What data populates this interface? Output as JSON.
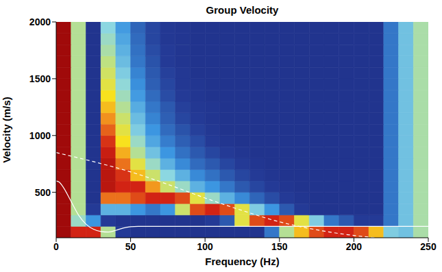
{
  "chart_data": {
    "type": "heatmap",
    "title": "Group Velocity",
    "x_label": "Frequency (Hz)",
    "y_label": "Velocity (m/s)",
    "xlim": [
      0,
      250
    ],
    "xticks": [
      0,
      50,
      100,
      150,
      200,
      250
    ],
    "ylim": [
      100,
      2000
    ],
    "yticks": [
      500,
      1000,
      1500,
      2000
    ],
    "x_bins": [
      0,
      10,
      20,
      30,
      40,
      50,
      60,
      70,
      80,
      90,
      100,
      110,
      120,
      130,
      140,
      150,
      160,
      170,
      180,
      190,
      200,
      210,
      220,
      230,
      240,
      250
    ],
    "y_bins": [
      100,
      200,
      300,
      400,
      500,
      600,
      700,
      800,
      900,
      1000,
      1100,
      1200,
      1300,
      1400,
      1500,
      1600,
      1700,
      1800,
      1900,
      2000
    ],
    "cells": [
      [
        1.0,
        0.9,
        0.9,
        0.5,
        0.15,
        0.12,
        0.12,
        0.12,
        0.12,
        0.12,
        0.12,
        0.12,
        0.12,
        0.12,
        0.25,
        0.5,
        0.7,
        0.85,
        0.9,
        0.9,
        0.85,
        0.7,
        0.4,
        0.38,
        0.48
      ],
      [
        1.0,
        0.45,
        0.3,
        0.15,
        0.12,
        0.12,
        0.12,
        0.12,
        0.12,
        0.12,
        0.15,
        0.2,
        0.6,
        0.85,
        0.9,
        0.85,
        0.6,
        0.4,
        0.25,
        0.2,
        0.15,
        0.15,
        0.25,
        0.38,
        0.48
      ],
      [
        1.0,
        0.5,
        0.15,
        0.35,
        0.35,
        0.3,
        0.25,
        0.3,
        0.55,
        0.85,
        0.9,
        0.85,
        0.6,
        0.4,
        0.3,
        0.2,
        0.15,
        0.12,
        0.12,
        0.12,
        0.12,
        0.12,
        0.25,
        0.38,
        0.48
      ],
      [
        1.0,
        0.5,
        0.12,
        0.8,
        0.8,
        0.85,
        0.9,
        0.9,
        0.85,
        0.6,
        0.45,
        0.35,
        0.28,
        0.22,
        0.18,
        0.15,
        0.13,
        0.12,
        0.12,
        0.12,
        0.12,
        0.12,
        0.25,
        0.38,
        0.48
      ],
      [
        1.0,
        0.5,
        0.12,
        0.95,
        0.9,
        0.9,
        0.75,
        0.55,
        0.45,
        0.35,
        0.3,
        0.25,
        0.2,
        0.17,
        0.15,
        0.13,
        0.12,
        0.12,
        0.12,
        0.12,
        0.12,
        0.12,
        0.25,
        0.38,
        0.48
      ],
      [
        1.0,
        0.5,
        0.12,
        0.95,
        0.88,
        0.7,
        0.55,
        0.42,
        0.35,
        0.28,
        0.24,
        0.2,
        0.17,
        0.15,
        0.13,
        0.12,
        0.12,
        0.12,
        0.12,
        0.12,
        0.12,
        0.12,
        0.25,
        0.38,
        0.48
      ],
      [
        1.0,
        0.5,
        0.12,
        0.95,
        0.8,
        0.6,
        0.45,
        0.35,
        0.28,
        0.23,
        0.2,
        0.17,
        0.15,
        0.13,
        0.12,
        0.12,
        0.12,
        0.12,
        0.12,
        0.12,
        0.12,
        0.12,
        0.25,
        0.38,
        0.48
      ],
      [
        1.0,
        0.5,
        0.12,
        0.92,
        0.72,
        0.5,
        0.38,
        0.3,
        0.24,
        0.2,
        0.17,
        0.15,
        0.13,
        0.12,
        0.12,
        0.12,
        0.12,
        0.12,
        0.12,
        0.12,
        0.12,
        0.12,
        0.25,
        0.38,
        0.48
      ],
      [
        1.0,
        0.5,
        0.12,
        0.88,
        0.65,
        0.45,
        0.33,
        0.26,
        0.21,
        0.18,
        0.15,
        0.13,
        0.12,
        0.12,
        0.12,
        0.12,
        0.12,
        0.12,
        0.12,
        0.12,
        0.12,
        0.12,
        0.25,
        0.38,
        0.48
      ],
      [
        1.0,
        0.5,
        0.12,
        0.82,
        0.6,
        0.4,
        0.3,
        0.23,
        0.19,
        0.16,
        0.14,
        0.12,
        0.12,
        0.12,
        0.12,
        0.12,
        0.12,
        0.12,
        0.12,
        0.12,
        0.12,
        0.12,
        0.25,
        0.38,
        0.48
      ],
      [
        1.0,
        0.5,
        0.12,
        0.76,
        0.55,
        0.37,
        0.27,
        0.21,
        0.17,
        0.15,
        0.13,
        0.12,
        0.12,
        0.12,
        0.12,
        0.12,
        0.12,
        0.12,
        0.12,
        0.12,
        0.12,
        0.12,
        0.25,
        0.38,
        0.48
      ],
      [
        1.0,
        0.5,
        0.12,
        0.7,
        0.5,
        0.34,
        0.25,
        0.2,
        0.16,
        0.14,
        0.13,
        0.12,
        0.12,
        0.12,
        0.12,
        0.12,
        0.12,
        0.12,
        0.12,
        0.12,
        0.12,
        0.12,
        0.25,
        0.38,
        0.48
      ],
      [
        1.0,
        0.5,
        0.12,
        0.65,
        0.46,
        0.31,
        0.23,
        0.18,
        0.15,
        0.13,
        0.12,
        0.12,
        0.12,
        0.12,
        0.12,
        0.12,
        0.12,
        0.12,
        0.12,
        0.12,
        0.12,
        0.12,
        0.25,
        0.38,
        0.48
      ],
      [
        1.0,
        0.5,
        0.12,
        0.6,
        0.43,
        0.29,
        0.21,
        0.17,
        0.14,
        0.13,
        0.12,
        0.12,
        0.12,
        0.12,
        0.12,
        0.12,
        0.12,
        0.12,
        0.12,
        0.12,
        0.12,
        0.12,
        0.25,
        0.38,
        0.48
      ],
      [
        1.0,
        0.5,
        0.12,
        0.56,
        0.4,
        0.27,
        0.2,
        0.16,
        0.14,
        0.12,
        0.12,
        0.12,
        0.12,
        0.12,
        0.12,
        0.12,
        0.12,
        0.12,
        0.12,
        0.12,
        0.12,
        0.12,
        0.25,
        0.38,
        0.48
      ],
      [
        1.0,
        0.5,
        0.12,
        0.52,
        0.37,
        0.25,
        0.19,
        0.15,
        0.13,
        0.12,
        0.12,
        0.12,
        0.12,
        0.12,
        0.12,
        0.12,
        0.12,
        0.12,
        0.12,
        0.12,
        0.12,
        0.12,
        0.25,
        0.38,
        0.48
      ],
      [
        1.0,
        0.5,
        0.12,
        0.48,
        0.35,
        0.24,
        0.18,
        0.15,
        0.13,
        0.12,
        0.12,
        0.12,
        0.12,
        0.12,
        0.12,
        0.12,
        0.12,
        0.12,
        0.12,
        0.12,
        0.12,
        0.12,
        0.25,
        0.38,
        0.48
      ],
      [
        1.0,
        0.5,
        0.12,
        0.45,
        0.33,
        0.23,
        0.17,
        0.14,
        0.13,
        0.12,
        0.12,
        0.12,
        0.12,
        0.12,
        0.12,
        0.12,
        0.12,
        0.12,
        0.12,
        0.12,
        0.12,
        0.12,
        0.25,
        0.38,
        0.48
      ],
      [
        1.0,
        0.5,
        0.12,
        0.42,
        0.31,
        0.22,
        0.17,
        0.14,
        0.13,
        0.12,
        0.12,
        0.12,
        0.12,
        0.12,
        0.12,
        0.12,
        0.12,
        0.12,
        0.12,
        0.12,
        0.12,
        0.12,
        0.25,
        0.38,
        0.48
      ]
    ],
    "series": [
      {
        "type": "line",
        "color": "#ffffff",
        "line_style": "solid",
        "x": [
          0,
          2,
          5,
          10,
          15,
          20,
          25,
          30,
          35,
          40,
          45,
          50,
          55,
          60,
          100,
          150,
          200,
          250
        ],
        "values": [
          600,
          590,
          540,
          420,
          300,
          220,
          175,
          155,
          150,
          165,
          185,
          197,
          200,
          200,
          200,
          200,
          200,
          200
        ]
      },
      {
        "type": "line",
        "color": "#ffffff",
        "line_style": "dashed",
        "x": [
          0,
          25,
          50,
          75,
          100,
          125,
          150,
          175,
          200,
          215
        ],
        "values": [
          850,
          770,
          680,
          570,
          450,
          340,
          240,
          170,
          120,
          100
        ]
      }
    ]
  }
}
